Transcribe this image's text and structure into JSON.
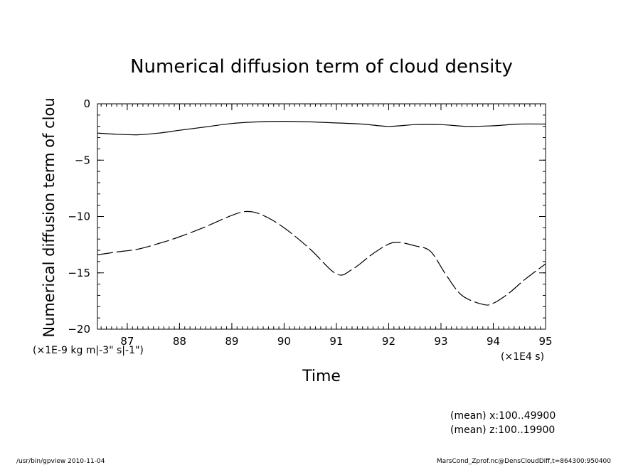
{
  "chart_data": {
    "type": "line",
    "title": "Numerical diffusion term of cloud density",
    "xlabel": "Time",
    "ylabel": "Numerical diffusion term of clou",
    "x_scale_label": "(×1E4 s)",
    "y_unit_label": "(×1E-9 kg m|-3\" s|-1\")",
    "xlim": [
      86.43,
      95.0
    ],
    "ylim": [
      -20,
      0
    ],
    "x_ticks": [
      "87",
      "88",
      "89",
      "90",
      "91",
      "92",
      "93",
      "94",
      "95"
    ],
    "y_ticks": [
      "0",
      "−5",
      "−10",
      "−15",
      "−20"
    ],
    "grid": false,
    "series": [
      {
        "style": "solid",
        "x": [
          86.43,
          86.8,
          87.2,
          87.6,
          88.0,
          88.5,
          89.0,
          89.5,
          90.0,
          90.5,
          91.0,
          91.5,
          92.0,
          92.5,
          93.0,
          93.5,
          94.0,
          94.5,
          95.0
        ],
        "y": [
          -2.6,
          -2.7,
          -2.75,
          -2.6,
          -2.35,
          -2.05,
          -1.75,
          -1.6,
          -1.55,
          -1.6,
          -1.7,
          -1.8,
          -2.0,
          -1.85,
          -1.85,
          -2.0,
          -1.95,
          -1.8,
          -1.8
        ]
      },
      {
        "style": "dashed",
        "x": [
          86.43,
          86.8,
          87.2,
          87.6,
          88.0,
          88.5,
          89.0,
          89.3,
          89.6,
          90.0,
          90.5,
          91.0,
          91.3,
          91.7,
          92.0,
          92.2,
          92.5,
          92.8,
          93.1,
          93.4,
          93.8,
          94.0,
          94.3,
          94.6,
          95.0
        ],
        "y": [
          -13.4,
          -13.15,
          -12.9,
          -12.4,
          -11.8,
          -10.9,
          -9.9,
          -9.55,
          -9.9,
          -11.0,
          -12.9,
          -15.1,
          -14.7,
          -13.3,
          -12.45,
          -12.3,
          -12.6,
          -13.1,
          -15.2,
          -17.0,
          -17.8,
          -17.7,
          -16.8,
          -15.6,
          -14.2
        ]
      }
    ]
  },
  "info": {
    "mean_x": "(mean) x:100..49900",
    "mean_z": "(mean) z:100..19900"
  },
  "footer": {
    "left": "/usr/bin/gpview  2010-11-04",
    "right": "MarsCond_Zprof.nc@DensCloudDiff,t=864300:950400"
  }
}
